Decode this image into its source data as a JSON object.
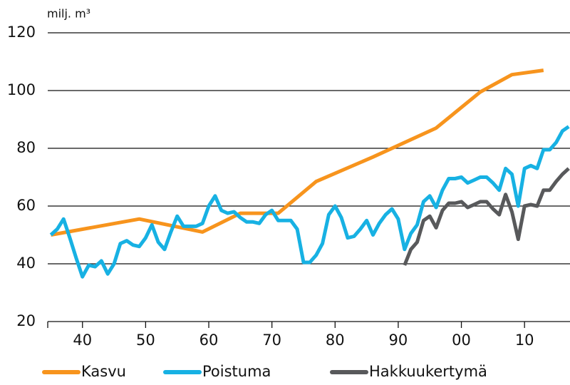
{
  "chart_data": {
    "type": "line",
    "y_label": "milj. m³",
    "xlim": [
      1934.5,
      2017.2
    ],
    "xticks": [
      {
        "value": 1940,
        "label": "40"
      },
      {
        "value": 1950,
        "label": "50"
      },
      {
        "value": 1960,
        "label": "60"
      },
      {
        "value": 1970,
        "label": "70"
      },
      {
        "value": 1980,
        "label": "80"
      },
      {
        "value": 1990,
        "label": "90"
      },
      {
        "value": 2000,
        "label": "00"
      },
      {
        "value": 2010,
        "label": "10"
      }
    ],
    "ylim": [
      20,
      120
    ],
    "yticks": [
      20,
      40,
      60,
      80,
      100,
      120
    ],
    "grid": true,
    "legend": "bottom",
    "series": [
      {
        "name": "Kasvu",
        "color": "#f7941d",
        "x": [
          1935,
          1949,
          1959,
          1965,
          1971,
          1977,
          1986,
          1996,
          2003,
          2008,
          2013
        ],
        "values": [
          50,
          55.5,
          51,
          57.5,
          57.5,
          68.5,
          77,
          87,
          99.5,
          105.5,
          107
        ]
      },
      {
        "name": "Poistuma",
        "color": "#17b1e3",
        "x": [
          1935,
          1936,
          1937,
          1938,
          1939,
          1940,
          1941,
          1942,
          1943,
          1944,
          1945,
          1946,
          1947,
          1948,
          1949,
          1950,
          1951,
          1952,
          1953,
          1954,
          1955,
          1956,
          1957,
          1958,
          1959,
          1960,
          1961,
          1962,
          1963,
          1964,
          1965,
          1966,
          1967,
          1968,
          1969,
          1970,
          1971,
          1972,
          1973,
          1974,
          1975,
          1976,
          1977,
          1978,
          1979,
          1980,
          1981,
          1982,
          1983,
          1984,
          1985,
          1986,
          1987,
          1988,
          1989,
          1990,
          1991,
          1992,
          1993,
          1994,
          1995,
          1996,
          1997,
          1998,
          1999,
          2000,
          2001,
          2002,
          2003,
          2004,
          2005,
          2006,
          2007,
          2008,
          2009,
          2010,
          2011,
          2012,
          2013,
          2014,
          2015,
          2016,
          2017
        ],
        "values": [
          50,
          52,
          55.5,
          49,
          42,
          35.5,
          39.5,
          39,
          41,
          36.5,
          40,
          47,
          48,
          46.5,
          46,
          49,
          53.5,
          47.5,
          45,
          51,
          56.5,
          53,
          53,
          53,
          54,
          60,
          63.5,
          58.5,
          57.5,
          58,
          56,
          54.5,
          54.5,
          54,
          57,
          58.5,
          55,
          55,
          55,
          52,
          40.5,
          40.5,
          43,
          47,
          57,
          60,
          56,
          49,
          49.5,
          52,
          55,
          50,
          54,
          57,
          59,
          55.5,
          45,
          50.5,
          53.5,
          61.5,
          63.5,
          59.5,
          65.5,
          69.5,
          69.5,
          70,
          68,
          69,
          70,
          70,
          68,
          65.5,
          73,
          71,
          60,
          73,
          74,
          73,
          79.5,
          79.5,
          82,
          86,
          87.5
        ]
      },
      {
        "name": "Hakkuukertymä",
        "color": "#58595b",
        "x": [
          1991,
          1992,
          1993,
          1994,
          1995,
          1996,
          1997,
          1998,
          1999,
          2000,
          2001,
          2002,
          2003,
          2004,
          2005,
          2006,
          2007,
          2008,
          2009,
          2010,
          2011,
          2012,
          2013,
          2014,
          2015,
          2016,
          2017
        ],
        "values": [
          39.5,
          45,
          47.5,
          55,
          56.5,
          52.5,
          58.5,
          61,
          61,
          61.5,
          59.5,
          60.5,
          61.5,
          61.5,
          59,
          57,
          64,
          58,
          48.5,
          60,
          60.5,
          60,
          65.5,
          65.5,
          68.5,
          71,
          73
        ]
      }
    ]
  }
}
